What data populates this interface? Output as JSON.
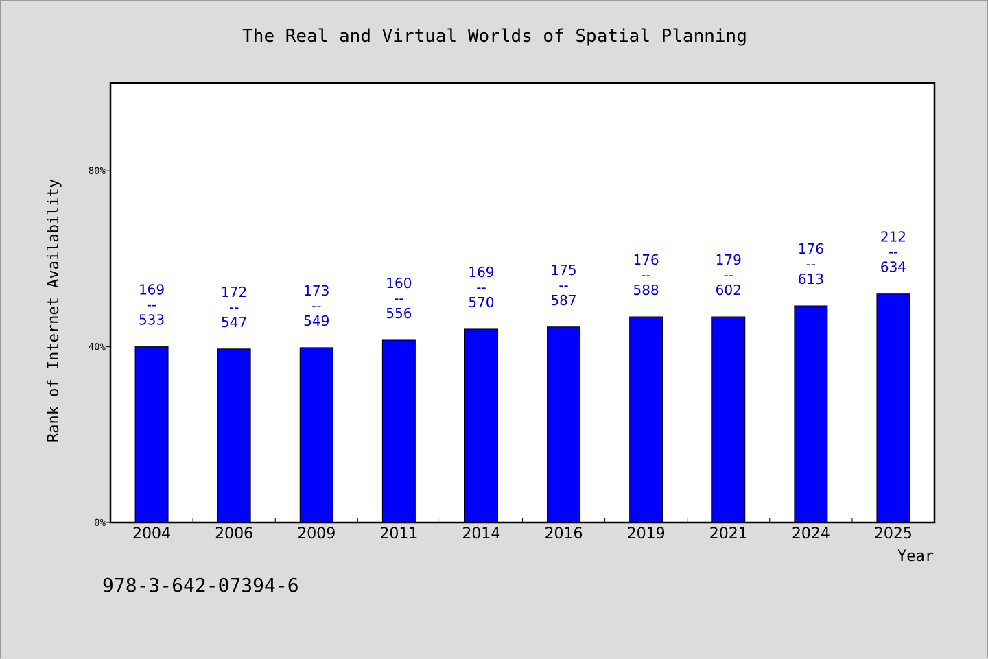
{
  "chart_data": {
    "type": "bar",
    "title": "The Real and Virtual Worlds of Spatial Planning",
    "xlabel": "Year",
    "ylabel": "Rank of Internet Availability",
    "categories": [
      "2004",
      "2006",
      "2009",
      "2011",
      "2014",
      "2016",
      "2019",
      "2021",
      "2024",
      "2025"
    ],
    "values": [
      40.0,
      39.5,
      39.8,
      41.5,
      44.0,
      44.5,
      46.8,
      46.8,
      49.3,
      52.0
    ],
    "annotations": [
      {
        "top": "169",
        "sep": "--",
        "bottom": "533"
      },
      {
        "top": "172",
        "sep": "--",
        "bottom": "547"
      },
      {
        "top": "173",
        "sep": "--",
        "bottom": "549"
      },
      {
        "top": "160",
        "sep": "--",
        "bottom": "556"
      },
      {
        "top": "169",
        "sep": "--",
        "bottom": "570"
      },
      {
        "top": "175",
        "sep": "--",
        "bottom": "587"
      },
      {
        "top": "176",
        "sep": "--",
        "bottom": "588"
      },
      {
        "top": "179",
        "sep": "--",
        "bottom": "602"
      },
      {
        "top": "176",
        "sep": "--",
        "bottom": "613"
      },
      {
        "top": "212",
        "sep": "--",
        "bottom": "634"
      }
    ],
    "yticks": [
      {
        "value": 0,
        "label": "0%"
      },
      {
        "value": 40,
        "label": "40%"
      },
      {
        "value": 80,
        "label": "80%"
      }
    ],
    "ylim": [
      0,
      100
    ],
    "grid": false,
    "legend": "none",
    "colors": {
      "bar": "#0000ff",
      "label": "#0000d0"
    }
  },
  "footer": {
    "isbn": "978-3-642-07394-6"
  }
}
